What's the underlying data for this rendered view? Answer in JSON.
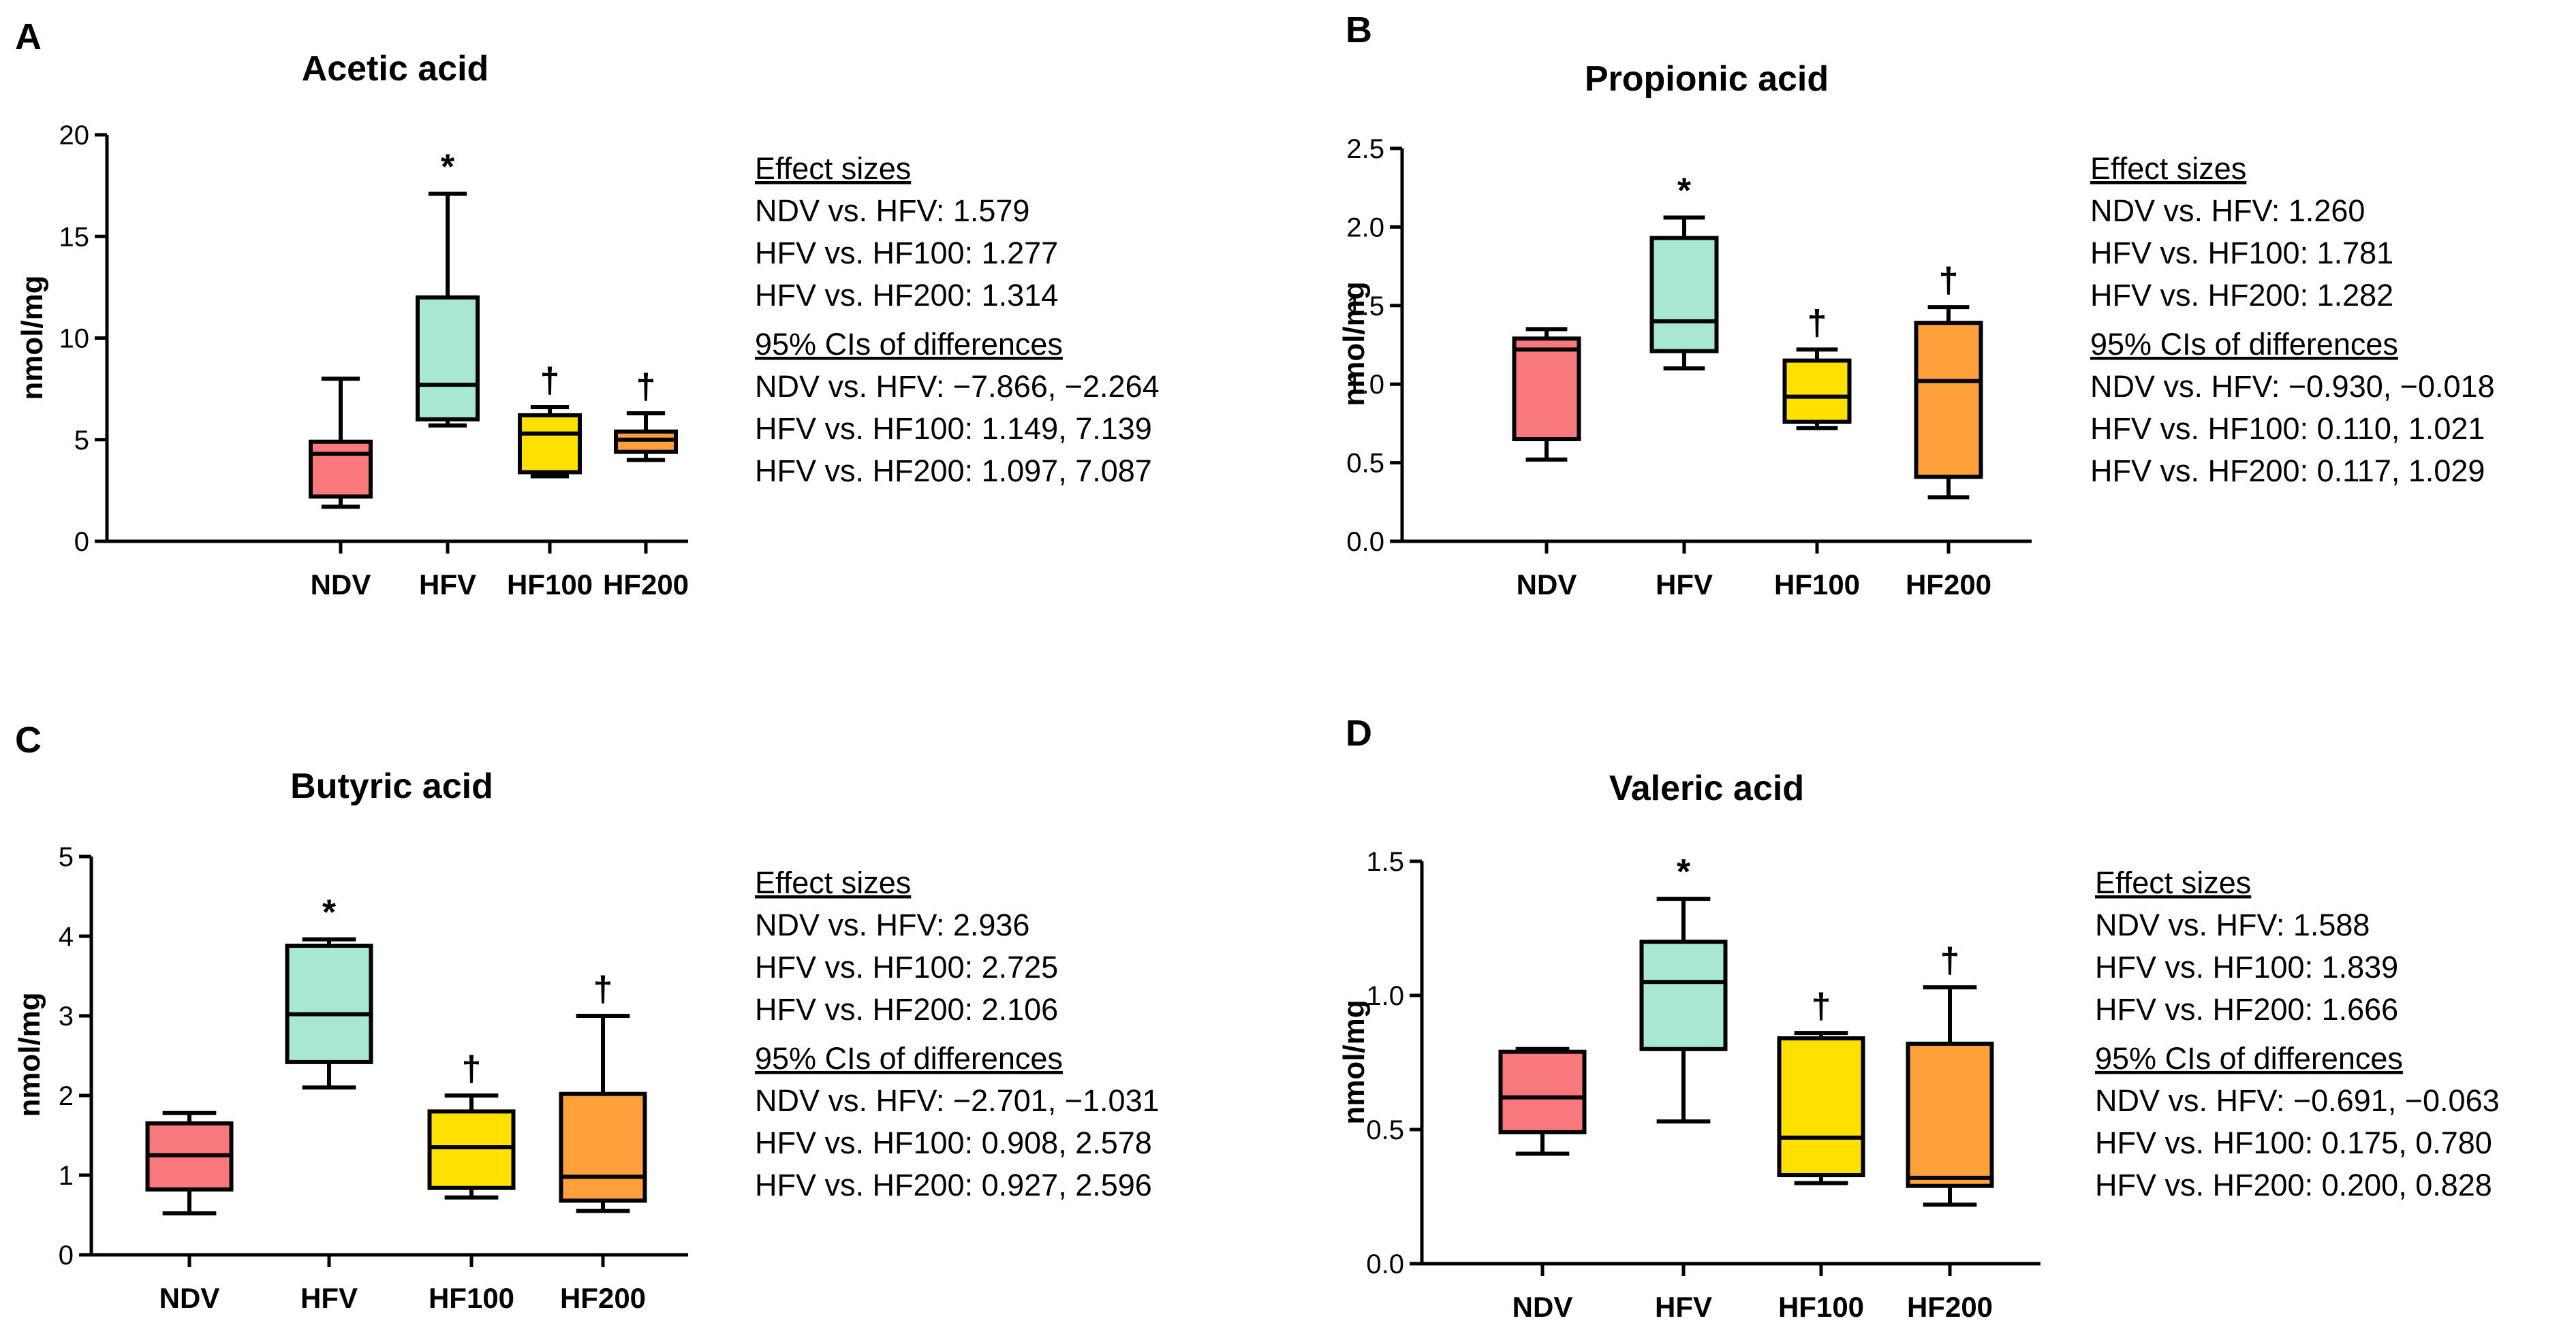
{
  "chart_data": [
    {
      "type": "box",
      "panel": "A",
      "title": "Acetic acid",
      "ylabel": "nmol/mg",
      "xlabel": "",
      "ylim": [
        0,
        20
      ],
      "yticks": [
        0,
        5,
        10,
        15,
        20
      ],
      "categories": [
        "NDV",
        "HFV",
        "HF100",
        "HF200"
      ],
      "boxes": [
        {
          "name": "NDV",
          "min": 1.7,
          "q1": 2.2,
          "median": 4.3,
          "q3": 4.9,
          "max": 8.0,
          "color": "#f8787b",
          "mark": ""
        },
        {
          "name": "HFV",
          "min": 5.7,
          "q1": 6.0,
          "median": 7.7,
          "q3": 12.0,
          "max": 17.1,
          "color": "#a8e8d2",
          "mark": "*"
        },
        {
          "name": "HF100",
          "min": 3.2,
          "q1": 3.4,
          "median": 5.3,
          "q3": 6.2,
          "max": 6.6,
          "color": "#ffe000",
          "mark": "†"
        },
        {
          "name": "HF200",
          "min": 4.0,
          "q1": 4.4,
          "median": 5.0,
          "q3": 5.4,
          "max": 6.3,
          "color": "#ffa03a",
          "mark": "†"
        }
      ],
      "stats": {
        "effect_heading": "Effect sizes",
        "effect_lines": [
          "NDV vs. HFV: 1.579",
          "HFV vs. HF100: 1.277",
          "HFV vs. HF200: 1.314"
        ],
        "ci_heading": "95% CIs of differences",
        "ci_lines": [
          "NDV vs. HFV: −7.866, −2.264",
          "HFV vs. HF100: 1.149, 7.139",
          "HFV vs. HF200: 1.097, 7.087"
        ]
      }
    },
    {
      "type": "box",
      "panel": "B",
      "title": "Propionic acid",
      "ylabel": "nmol/mg",
      "xlabel": "",
      "ylim": [
        0,
        2.5
      ],
      "yticks": [
        0.0,
        0.5,
        1.0,
        1.5,
        2.0,
        2.5
      ],
      "categories": [
        "NDV",
        "HFV",
        "HF100",
        "HF200"
      ],
      "boxes": [
        {
          "name": "NDV",
          "min": 0.52,
          "q1": 0.65,
          "median": 1.22,
          "q3": 1.29,
          "max": 1.35,
          "color": "#f8787b",
          "mark": ""
        },
        {
          "name": "HFV",
          "min": 1.1,
          "q1": 1.21,
          "median": 1.4,
          "q3": 1.93,
          "max": 2.06,
          "color": "#a8e8d2",
          "mark": "*"
        },
        {
          "name": "HF100",
          "min": 0.72,
          "q1": 0.76,
          "median": 0.92,
          "q3": 1.15,
          "max": 1.22,
          "color": "#ffe000",
          "mark": "†"
        },
        {
          "name": "HF200",
          "min": 0.28,
          "q1": 0.41,
          "median": 1.02,
          "q3": 1.39,
          "max": 1.49,
          "color": "#ffa03a",
          "mark": "†"
        }
      ],
      "stats": {
        "effect_heading": "Effect sizes",
        "effect_lines": [
          "NDV vs. HFV: 1.260",
          "HFV vs. HF100: 1.781",
          "HFV vs. HF200: 1.282"
        ],
        "ci_heading": "95% CIs of differences",
        "ci_lines": [
          "NDV vs. HFV: −0.930, −0.018",
          "HFV vs. HF100: 0.110, 1.021",
          "HFV vs. HF200: 0.117, 1.029"
        ]
      }
    },
    {
      "type": "box",
      "panel": "C",
      "title": "Butyric acid",
      "ylabel": "nmol/mg",
      "xlabel": "",
      "ylim": [
        0,
        5
      ],
      "yticks": [
        0,
        1,
        2,
        3,
        4,
        5
      ],
      "categories": [
        "NDV",
        "HFV",
        "HF100",
        "HF200"
      ],
      "boxes": [
        {
          "name": "NDV",
          "min": 0.52,
          "q1": 0.82,
          "median": 1.25,
          "q3": 1.65,
          "max": 1.78,
          "color": "#f8787b",
          "mark": ""
        },
        {
          "name": "HFV",
          "min": 2.1,
          "q1": 2.42,
          "median": 3.02,
          "q3": 3.88,
          "max": 3.96,
          "color": "#a8e8d2",
          "mark": "*"
        },
        {
          "name": "HF100",
          "min": 0.72,
          "q1": 0.84,
          "median": 1.35,
          "q3": 1.8,
          "max": 2.0,
          "color": "#ffe000",
          "mark": "†"
        },
        {
          "name": "HF200",
          "min": 0.55,
          "q1": 0.68,
          "median": 0.98,
          "q3": 2.02,
          "max": 3.0,
          "color": "#ffa03a",
          "mark": "†"
        }
      ],
      "stats": {
        "effect_heading": "Effect sizes",
        "effect_lines": [
          "NDV vs. HFV: 2.936",
          "HFV vs. HF100: 2.725",
          "HFV vs. HF200: 2.106"
        ],
        "ci_heading": "95% CIs of differences",
        "ci_lines": [
          "NDV vs. HFV: −2.701, −1.031",
          "HFV vs. HF100: 0.908, 2.578",
          "HFV vs. HF200: 0.927, 2.596"
        ]
      }
    },
    {
      "type": "box",
      "panel": "D",
      "title": "Valeric acid",
      "ylabel": "nmol/mg",
      "xlabel": "",
      "ylim": [
        0,
        1.5
      ],
      "yticks": [
        0.0,
        0.5,
        1.0,
        1.5
      ],
      "categories": [
        "NDV",
        "HFV",
        "HF100",
        "HF200"
      ],
      "boxes": [
        {
          "name": "NDV",
          "min": 0.41,
          "q1": 0.49,
          "median": 0.62,
          "q3": 0.79,
          "max": 0.8,
          "color": "#f8787b",
          "mark": ""
        },
        {
          "name": "HFV",
          "min": 0.53,
          "q1": 0.8,
          "median": 1.05,
          "q3": 1.2,
          "max": 1.36,
          "color": "#a8e8d2",
          "mark": "*"
        },
        {
          "name": "HF100",
          "min": 0.3,
          "q1": 0.33,
          "median": 0.47,
          "q3": 0.84,
          "max": 0.86,
          "color": "#ffe000",
          "mark": "†"
        },
        {
          "name": "HF200",
          "min": 0.22,
          "q1": 0.29,
          "median": 0.32,
          "q3": 0.82,
          "max": 1.03,
          "color": "#ffa03a",
          "mark": "†"
        }
      ],
      "stats": {
        "effect_heading": "Effect sizes",
        "effect_lines": [
          "NDV vs. HFV: 1.588",
          "HFV vs. HF100: 1.839",
          "HFV vs. HF200: 1.666"
        ],
        "ci_heading": "95% CIs of differences",
        "ci_lines": [
          "NDV vs. HFV: −0.691, −0.063",
          "HFV vs. HF100: 0.175, 0.780",
          "HFV vs. HF200: 0.200, 0.828"
        ]
      }
    }
  ]
}
